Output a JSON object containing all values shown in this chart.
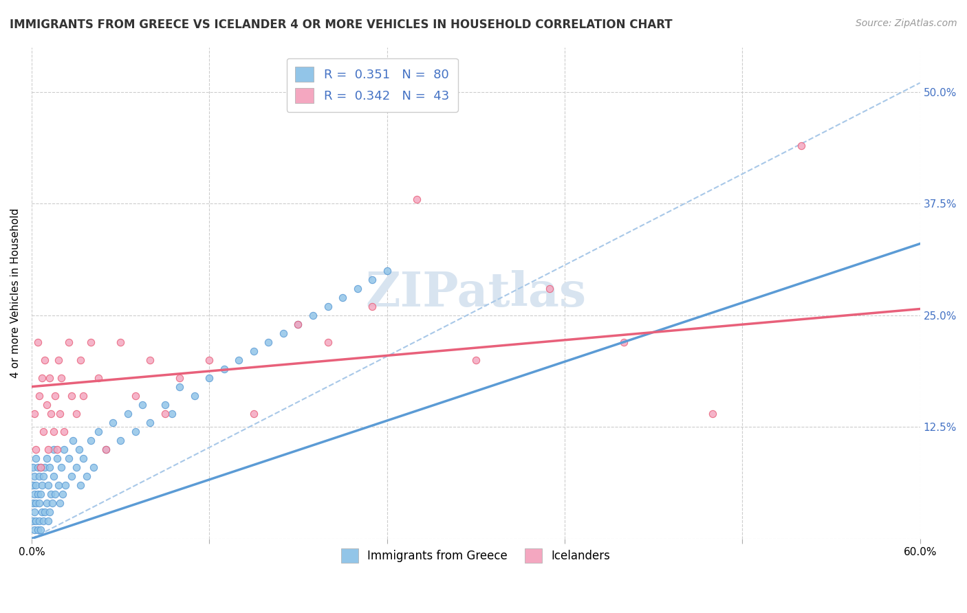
{
  "title": "IMMIGRANTS FROM GREECE VS ICELANDER 4 OR MORE VEHICLES IN HOUSEHOLD CORRELATION CHART",
  "source": "Source: ZipAtlas.com",
  "ylabel": "4 or more Vehicles in Household",
  "xlim": [
    0.0,
    0.6
  ],
  "ylim": [
    0.0,
    0.55
  ],
  "yticks_right": [
    0.0,
    0.125,
    0.25,
    0.375,
    0.5
  ],
  "yticklabels_right": [
    "",
    "12.5%",
    "25.0%",
    "37.5%",
    "50.0%"
  ],
  "series1_label": "Immigrants from Greece",
  "series2_label": "Icelanders",
  "series1_R": 0.351,
  "series1_N": 80,
  "series2_R": 0.342,
  "series2_N": 43,
  "series1_color": "#92C5E8",
  "series2_color": "#F4A7C0",
  "line1_color": "#5B9BD5",
  "line2_color": "#E8607A",
  "dashed_color": "#A8C8E8",
  "blue_text_color": "#4472C4",
  "watermark_color": "#D8E4F0",
  "series1_x": [
    0.001,
    0.001,
    0.001,
    0.001,
    0.002,
    0.002,
    0.002,
    0.002,
    0.003,
    0.003,
    0.003,
    0.003,
    0.004,
    0.004,
    0.004,
    0.005,
    0.005,
    0.005,
    0.006,
    0.006,
    0.006,
    0.007,
    0.007,
    0.008,
    0.008,
    0.009,
    0.009,
    0.01,
    0.01,
    0.011,
    0.011,
    0.012,
    0.012,
    0.013,
    0.014,
    0.015,
    0.015,
    0.016,
    0.017,
    0.018,
    0.019,
    0.02,
    0.021,
    0.022,
    0.023,
    0.025,
    0.027,
    0.028,
    0.03,
    0.032,
    0.033,
    0.035,
    0.037,
    0.04,
    0.042,
    0.045,
    0.05,
    0.055,
    0.06,
    0.065,
    0.07,
    0.075,
    0.08,
    0.09,
    0.095,
    0.1,
    0.11,
    0.12,
    0.13,
    0.14,
    0.15,
    0.16,
    0.17,
    0.18,
    0.19,
    0.2,
    0.21,
    0.22,
    0.23,
    0.24
  ],
  "series1_y": [
    0.02,
    0.04,
    0.06,
    0.08,
    0.01,
    0.03,
    0.05,
    0.07,
    0.02,
    0.04,
    0.06,
    0.09,
    0.01,
    0.05,
    0.08,
    0.02,
    0.04,
    0.07,
    0.01,
    0.05,
    0.08,
    0.03,
    0.06,
    0.02,
    0.07,
    0.03,
    0.08,
    0.04,
    0.09,
    0.02,
    0.06,
    0.03,
    0.08,
    0.05,
    0.04,
    0.07,
    0.1,
    0.05,
    0.09,
    0.06,
    0.04,
    0.08,
    0.05,
    0.1,
    0.06,
    0.09,
    0.07,
    0.11,
    0.08,
    0.1,
    0.06,
    0.09,
    0.07,
    0.11,
    0.08,
    0.12,
    0.1,
    0.13,
    0.11,
    0.14,
    0.12,
    0.15,
    0.13,
    0.15,
    0.14,
    0.17,
    0.16,
    0.18,
    0.19,
    0.2,
    0.21,
    0.22,
    0.23,
    0.24,
    0.25,
    0.26,
    0.27,
    0.28,
    0.29,
    0.3
  ],
  "series2_x": [
    0.002,
    0.003,
    0.004,
    0.005,
    0.006,
    0.007,
    0.008,
    0.009,
    0.01,
    0.011,
    0.012,
    0.013,
    0.015,
    0.016,
    0.017,
    0.018,
    0.019,
    0.02,
    0.022,
    0.025,
    0.027,
    0.03,
    0.033,
    0.035,
    0.04,
    0.045,
    0.05,
    0.06,
    0.07,
    0.08,
    0.09,
    0.1,
    0.12,
    0.15,
    0.18,
    0.2,
    0.23,
    0.26,
    0.3,
    0.35,
    0.4,
    0.46,
    0.52
  ],
  "series2_y": [
    0.14,
    0.1,
    0.22,
    0.16,
    0.08,
    0.18,
    0.12,
    0.2,
    0.15,
    0.1,
    0.18,
    0.14,
    0.12,
    0.16,
    0.1,
    0.2,
    0.14,
    0.18,
    0.12,
    0.22,
    0.16,
    0.14,
    0.2,
    0.16,
    0.22,
    0.18,
    0.1,
    0.22,
    0.16,
    0.2,
    0.14,
    0.18,
    0.2,
    0.14,
    0.24,
    0.22,
    0.26,
    0.38,
    0.2,
    0.28,
    0.22,
    0.14,
    0.44
  ],
  "blue_line_intercept": 0.0,
  "blue_line_slope": 0.55,
  "pink_line_intercept": 0.17,
  "pink_line_slope": 0.145,
  "dashed_line_intercept": 0.0,
  "dashed_line_slope": 0.85
}
